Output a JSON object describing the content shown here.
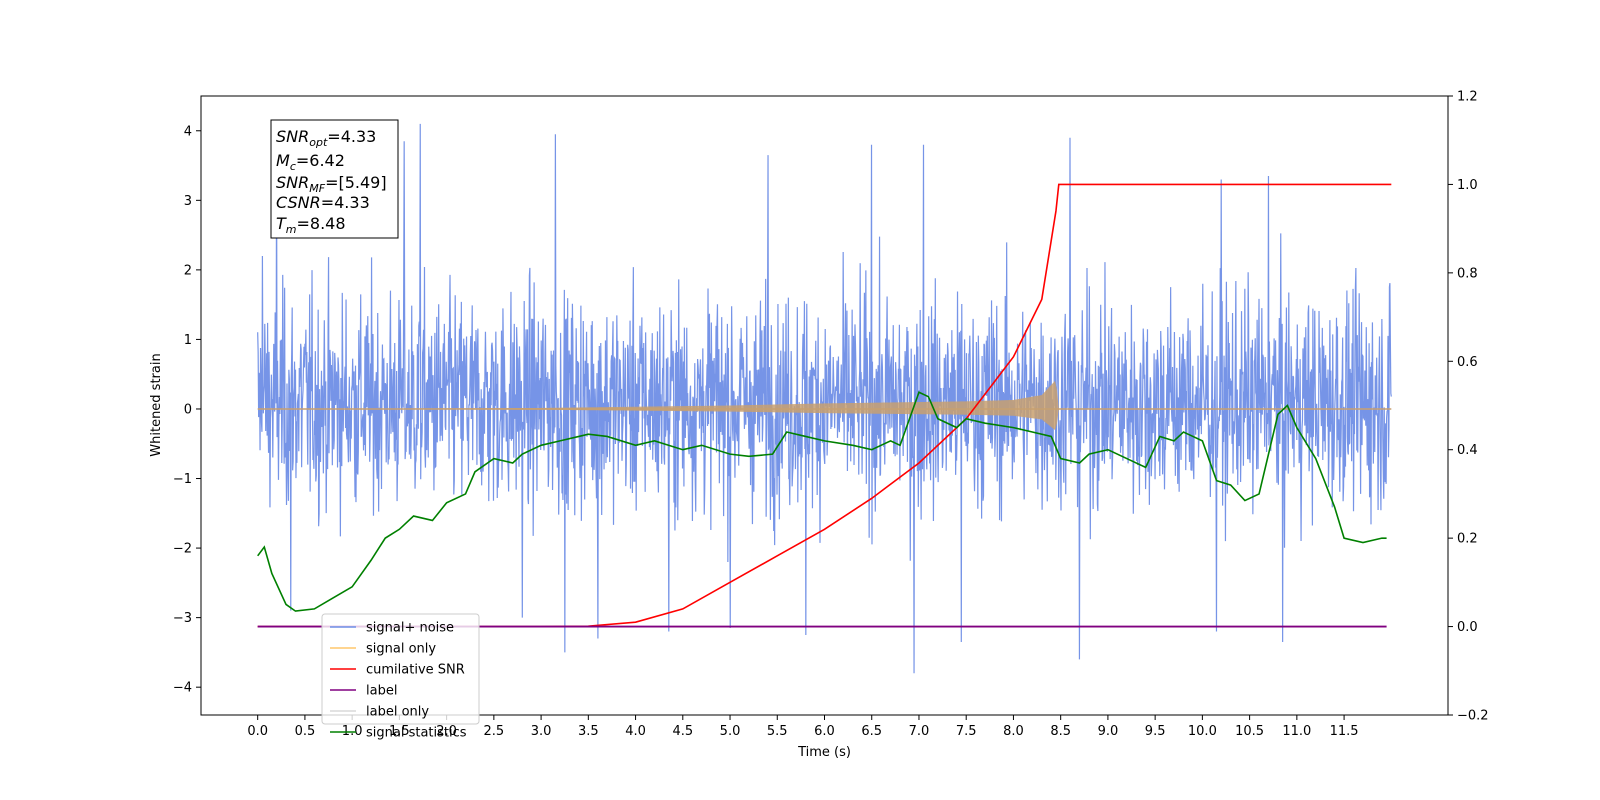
{
  "chart_data": {
    "type": "line",
    "xlabel": "Time (s)",
    "ylabel": "Whitened strain",
    "xlim": [
      -0.6,
      12.6
    ],
    "ylim_left": [
      -4.4,
      4.5
    ],
    "ylim_right": [
      -0.2,
      1.2
    ],
    "x_ticks": [
      "0.0",
      "0.5",
      "1.0",
      "1.5",
      "2.0",
      "2.5",
      "3.0",
      "3.5",
      "4.0",
      "4.5",
      "5.0",
      "5.5",
      "6.0",
      "6.5",
      "7.0",
      "7.5",
      "8.0",
      "8.5",
      "9.0",
      "9.5",
      "10.0",
      "10.5",
      "11.0",
      "11.5"
    ],
    "y_ticks_left": [
      "4",
      "3",
      "2",
      "1",
      "0",
      "−1",
      "−2",
      "−3",
      "−4"
    ],
    "y_ticks_right": [
      "1.2",
      "1.0",
      "0.8",
      "0.6",
      "0.4",
      "0.2",
      "0.0",
      "−0.2"
    ],
    "annotation": {
      "lines": [
        {
          "main": "SNR",
          "sub": "opt",
          "value": "=4.33"
        },
        {
          "main": "M",
          "sub": "c",
          "value": "=6.42"
        },
        {
          "main": "SNR",
          "sub": "MF",
          "value": "=[5.49]"
        },
        {
          "main": "CSNR",
          "sub": "",
          "value": "=4.33"
        },
        {
          "main": "T",
          "sub": "m",
          "value": "=8.48"
        }
      ]
    },
    "legend": {
      "placement": "lower-left",
      "entries": [
        {
          "label": "signal+ noise",
          "color": "#6f8ee6"
        },
        {
          "label": "signal only",
          "color": "#ffc76b"
        },
        {
          "label": "cumilative SNR",
          "color": "#ff0000"
        },
        {
          "label": "label",
          "color": "#800080"
        },
        {
          "label": "label only",
          "color": "#d9d9d9"
        },
        {
          "label": "signal statistics",
          "color": "#008000"
        }
      ]
    },
    "series": [
      {
        "name": "signal+ noise",
        "axis": "left",
        "color": "#6f8ee6",
        "x_range": [
          0.0,
          12.0
        ],
        "typical_range": [
          -1.9,
          2.3
        ],
        "spikes": [
          {
            "x": 0.05,
            "y": 2.2
          },
          {
            "x": 0.2,
            "y": 3.7
          },
          {
            "x": 0.35,
            "y": -2.9
          },
          {
            "x": 1.55,
            "y": 3.85
          },
          {
            "x": 1.72,
            "y": 4.1
          },
          {
            "x": 2.8,
            "y": -3.0
          },
          {
            "x": 3.15,
            "y": 3.95
          },
          {
            "x": 3.25,
            "y": -3.5
          },
          {
            "x": 3.6,
            "y": -3.3
          },
          {
            "x": 4.35,
            "y": -3.2
          },
          {
            "x": 5.0,
            "y": -3.15
          },
          {
            "x": 5.4,
            "y": 3.65
          },
          {
            "x": 5.8,
            "y": -3.25
          },
          {
            "x": 6.5,
            "y": 3.8
          },
          {
            "x": 6.95,
            "y": -3.8
          },
          {
            "x": 7.05,
            "y": 3.8
          },
          {
            "x": 7.45,
            "y": -3.35
          },
          {
            "x": 8.6,
            "y": 3.9
          },
          {
            "x": 8.7,
            "y": -3.6
          },
          {
            "x": 10.2,
            "y": 3.3
          },
          {
            "x": 10.7,
            "y": 3.35
          },
          {
            "x": 10.15,
            "y": -3.2
          },
          {
            "x": 10.85,
            "y": -3.35
          }
        ]
      },
      {
        "name": "signal only",
        "axis": "left",
        "color": "#ffc76b",
        "chirp_end": 8.48,
        "envelope": [
          [
            0.0,
            0.0
          ],
          [
            3.0,
            0.015
          ],
          [
            5.0,
            0.05
          ],
          [
            6.0,
            0.08
          ],
          [
            7.0,
            0.1
          ],
          [
            7.5,
            0.11
          ],
          [
            8.0,
            0.13
          ],
          [
            8.3,
            0.2
          ],
          [
            8.45,
            0.42
          ],
          [
            8.48,
            0.0
          ],
          [
            12.0,
            0.0
          ]
        ]
      },
      {
        "name": "cumilative SNR",
        "axis": "right",
        "color": "#ff0000",
        "x": [
          0.0,
          3.0,
          3.5,
          4.0,
          4.5,
          5.0,
          5.5,
          6.0,
          6.5,
          7.0,
          7.5,
          8.0,
          8.3,
          8.45,
          8.48,
          12.0
        ],
        "y": [
          0.0,
          0.0,
          0.001,
          0.01,
          0.04,
          0.1,
          0.16,
          0.22,
          0.29,
          0.37,
          0.47,
          0.61,
          0.74,
          0.94,
          1.0,
          1.0
        ]
      },
      {
        "name": "label",
        "axis": "right",
        "color": "#800080",
        "x": [
          0.0,
          11.95
        ],
        "y": [
          0.0,
          0.0
        ]
      },
      {
        "name": "signal statistics",
        "axis": "right",
        "color": "#008000",
        "x": [
          0.0,
          0.07,
          0.15,
          0.3,
          0.4,
          0.6,
          0.8,
          1.0,
          1.2,
          1.35,
          1.5,
          1.65,
          1.85,
          2.0,
          2.2,
          2.3,
          2.5,
          2.7,
          2.8,
          3.0,
          3.2,
          3.4,
          3.5,
          3.7,
          4.0,
          4.2,
          4.5,
          4.7,
          5.0,
          5.2,
          5.45,
          5.6,
          5.8,
          6.0,
          6.3,
          6.5,
          6.7,
          6.8,
          7.0,
          7.1,
          7.2,
          7.4,
          7.5,
          7.7,
          8.0,
          8.2,
          8.4,
          8.5,
          8.7,
          8.8,
          9.0,
          9.2,
          9.4,
          9.55,
          9.7,
          9.8,
          9.9,
          10.0,
          10.15,
          10.3,
          10.45,
          10.6,
          10.8,
          10.9,
          11.0,
          11.2,
          11.4,
          11.5,
          11.7,
          11.9,
          11.95
        ],
        "y": [
          0.16,
          0.18,
          0.12,
          0.05,
          0.035,
          0.04,
          0.065,
          0.09,
          0.15,
          0.2,
          0.22,
          0.25,
          0.24,
          0.28,
          0.3,
          0.35,
          0.38,
          0.37,
          0.39,
          0.41,
          0.42,
          0.43,
          0.435,
          0.43,
          0.41,
          0.42,
          0.4,
          0.41,
          0.39,
          0.385,
          0.39,
          0.44,
          0.43,
          0.42,
          0.41,
          0.4,
          0.42,
          0.41,
          0.53,
          0.52,
          0.47,
          0.45,
          0.47,
          0.46,
          0.45,
          0.44,
          0.43,
          0.38,
          0.37,
          0.39,
          0.4,
          0.38,
          0.36,
          0.43,
          0.42,
          0.44,
          0.43,
          0.42,
          0.33,
          0.32,
          0.285,
          0.3,
          0.48,
          0.5,
          0.45,
          0.38,
          0.27,
          0.2,
          0.19,
          0.2,
          0.2
        ]
      }
    ]
  }
}
